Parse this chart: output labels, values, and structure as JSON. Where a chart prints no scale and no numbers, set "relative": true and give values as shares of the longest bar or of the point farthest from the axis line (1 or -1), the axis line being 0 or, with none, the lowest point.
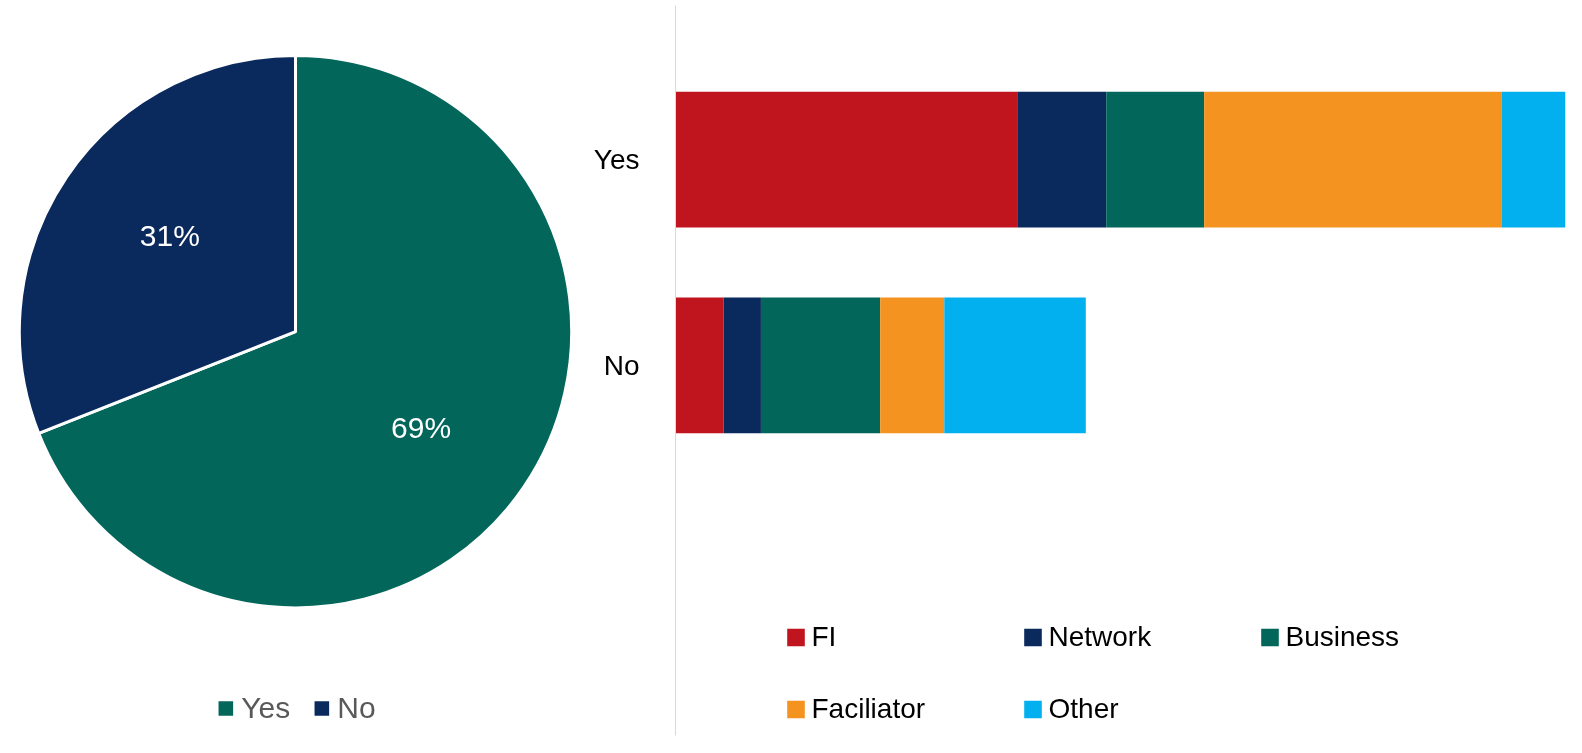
{
  "chart_data": [
    {
      "type": "pie",
      "categories": [
        "Yes",
        "No"
      ],
      "values": [
        69,
        31
      ],
      "colors": [
        "#02665a",
        "#0a2a5e"
      ],
      "value_labels": [
        "69%",
        "31%"
      ],
      "legend": "bottom"
    },
    {
      "type": "bar",
      "orientation": "horizontal",
      "stacked": true,
      "relative": true,
      "categories": [
        "Yes",
        "No"
      ],
      "legend": "bottom",
      "grid": false,
      "series": [
        {
          "name": "FI",
          "color": "#c0141f",
          "values": [
            0.384,
            0.054
          ]
        },
        {
          "name": "Network",
          "color": "#0a2a5e",
          "values": [
            0.1,
            0.042
          ]
        },
        {
          "name": "Business",
          "color": "#02665a",
          "values": [
            0.11,
            0.134
          ]
        },
        {
          "name": "Faciliator",
          "color": "#f59320",
          "values": [
            0.334,
            0.072
          ]
        },
        {
          "name": "Other",
          "color": "#03b0ef",
          "values": [
            0.072,
            0.159
          ]
        }
      ]
    }
  ]
}
